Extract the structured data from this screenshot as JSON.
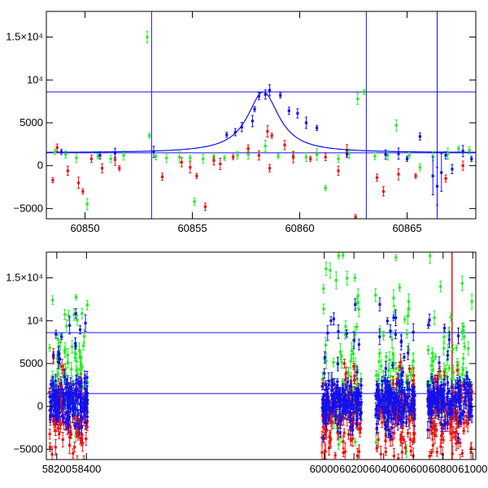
{
  "chart_data": [
    {
      "type": "scatter",
      "panel": "top",
      "title": "",
      "xlabel": "",
      "ylabel": "",
      "xlim": [
        60848.2,
        60868.2
      ],
      "ylim": [
        -6200,
        18000
      ],
      "x_ticks": [
        {
          "value": 60850,
          "label": "60850"
        },
        {
          "value": 60855,
          "label": "60855"
        },
        {
          "value": 60860,
          "label": "60860"
        },
        {
          "value": 60865,
          "label": "60865"
        }
      ],
      "y_ticks": [
        {
          "value": -5000,
          "label": "−5000"
        },
        {
          "value": 0,
          "label": "0"
        },
        {
          "value": 5000,
          "label": "5000"
        },
        {
          "value": 10000,
          "label": "10⁴"
        },
        {
          "value": 15000,
          "label": "1.5×10⁴"
        }
      ],
      "hlines": [
        8600,
        1500
      ],
      "vlines": [
        60853.1,
        60863.1,
        60866.4
      ],
      "model": {
        "type": "lorentzian",
        "baseline": 1500,
        "amplitude": 7100,
        "center": 60858.3,
        "hwhm": 0.9
      },
      "series": [
        {
          "name": "green",
          "color": "#22ee22",
          "points": [
            [
              60848.6,
              1600
            ],
            [
              60849.1,
              1300
            ],
            [
              60849.6,
              900
            ],
            [
              60850.1,
              -4500
            ],
            [
              60850.6,
              1100
            ],
            [
              60851.2,
              800
            ],
            [
              60851.8,
              1200
            ],
            [
              60852.9,
              15000
            ],
            [
              60853.0,
              3500
            ],
            [
              60853.3,
              1100
            ],
            [
              60853.8,
              900
            ],
            [
              60854.4,
              1000
            ],
            [
              60854.9,
              900
            ],
            [
              60855.1,
              -4200
            ],
            [
              60855.5,
              800
            ],
            [
              60856.0,
              900
            ],
            [
              60856.5,
              900
            ],
            [
              60857.1,
              1200
            ],
            [
              60857.6,
              1300
            ],
            [
              60858.4,
              2300
            ],
            [
              60859.0,
              1100
            ],
            [
              60859.7,
              1200
            ],
            [
              60860.3,
              1000
            ],
            [
              60860.8,
              1300
            ],
            [
              60861.2,
              -2600
            ],
            [
              60861.8,
              800
            ],
            [
              60862.3,
              1400
            ],
            [
              60862.7,
              7800
            ],
            [
              60863.0,
              8600
            ],
            [
              60863.5,
              1100
            ],
            [
              60864.1,
              1200
            ],
            [
              60864.5,
              4700
            ],
            [
              60865.1,
              1200
            ],
            [
              60865.6,
              -200
            ],
            [
              60866.2,
              1100
            ],
            [
              60866.9,
              1400
            ],
            [
              60867.4,
              2000
            ],
            [
              60867.9,
              1800
            ]
          ]
        },
        {
          "name": "red",
          "color": "#ee1111",
          "points": [
            [
              60848.5,
              -1700
            ],
            [
              60848.7,
              2100
            ],
            [
              60849.2,
              -600
            ],
            [
              60849.7,
              -2000
            ],
            [
              60849.9,
              -3000
            ],
            [
              60850.3,
              800
            ],
            [
              60850.8,
              -300
            ],
            [
              60851.4,
              700
            ],
            [
              60851.6,
              -300
            ],
            [
              60853.6,
              -1300
            ],
            [
              60854.5,
              400
            ],
            [
              60854.9,
              -200
            ],
            [
              60855.2,
              -1200
            ],
            [
              60855.6,
              -4800
            ],
            [
              60856.0,
              600
            ],
            [
              60856.3,
              200
            ],
            [
              60856.9,
              1000
            ],
            [
              60857.6,
              2000
            ],
            [
              60858.1,
              1200
            ],
            [
              60858.5,
              4000
            ],
            [
              60858.7,
              3500
            ],
            [
              60858.6,
              -300
            ],
            [
              60859.3,
              2400
            ],
            [
              60859.7,
              1000
            ],
            [
              60860.5,
              800
            ],
            [
              60861.2,
              1000
            ],
            [
              60861.8,
              -600
            ],
            [
              60862.2,
              1800
            ],
            [
              60862.6,
              -6000
            ],
            [
              60863.6,
              -1400
            ],
            [
              60863.9,
              -3000
            ],
            [
              60864.6,
              -1000
            ],
            [
              60865.4,
              -1200
            ],
            [
              60866.8,
              -1500
            ],
            [
              60867.6,
              0
            ]
          ]
        },
        {
          "name": "blue",
          "color": "#1111ee",
          "points": [
            [
              60848.9,
              1600
            ],
            [
              60850.7,
              1200
            ],
            [
              60851.4,
              1500
            ],
            [
              60853.2,
              1600
            ],
            [
              60856.6,
              3600
            ],
            [
              60857.0,
              3900
            ],
            [
              60857.3,
              4500
            ],
            [
              60857.8,
              5200
            ],
            [
              60857.9,
              6600
            ],
            [
              60858.1,
              8100
            ],
            [
              60858.4,
              8300
            ],
            [
              60858.6,
              8800
            ],
            [
              60859.1,
              8200
            ],
            [
              60859.5,
              6400
            ],
            [
              60859.9,
              6100
            ],
            [
              60860.3,
              5000
            ],
            [
              60860.8,
              4400
            ],
            [
              60862.2,
              1400
            ],
            [
              60864.0,
              1300
            ],
            [
              60864.6,
              1400
            ],
            [
              60865.0,
              800
            ],
            [
              60865.6,
              3400
            ],
            [
              60866.2,
              -1200
            ],
            [
              60866.4,
              -2400
            ],
            [
              60866.6,
              -800
            ],
            [
              60866.8,
              1200
            ],
            [
              60867.1,
              -400
            ],
            [
              60867.6,
              1700
            ],
            [
              60868.0,
              800
            ]
          ]
        }
      ]
    },
    {
      "type": "scatter",
      "panel": "bottom",
      "title": "",
      "xlabel": "",
      "ylabel": "",
      "xlim": [
        58130,
        61020
      ],
      "ylim": [
        -6200,
        18000
      ],
      "x_ticks": [
        {
          "value": 58200,
          "label": "58200"
        },
        {
          "value": 58400,
          "label": "58400"
        },
        {
          "value": 60000,
          "label": "60000"
        },
        {
          "value": 60200,
          "label": "60200"
        },
        {
          "value": 60400,
          "label": "60400"
        },
        {
          "value": 60600,
          "label": "60600"
        },
        {
          "value": 60800,
          "label": "60800"
        },
        {
          "value": 61000,
          "label": "61000"
        }
      ],
      "y_ticks": [
        {
          "value": -5000,
          "label": "−5000"
        },
        {
          "value": 0,
          "label": "0"
        },
        {
          "value": 5000,
          "label": "5000"
        },
        {
          "value": 10000,
          "label": "10⁴"
        },
        {
          "value": 15000,
          "label": "1.5×10⁴"
        }
      ],
      "hlines": [
        8600,
        1500
      ],
      "vlines": [
        60860
      ],
      "season_ranges": [
        [
          58150,
          58410
        ],
        [
          59985,
          60250
        ],
        [
          60345,
          60610
        ],
        [
          60695,
          60995
        ]
      ],
      "series": [
        {
          "name": "green",
          "color": "#22ee22"
        },
        {
          "name": "red",
          "color": "#ee1111"
        },
        {
          "name": "blue",
          "color": "#1111ee"
        }
      ]
    }
  ]
}
